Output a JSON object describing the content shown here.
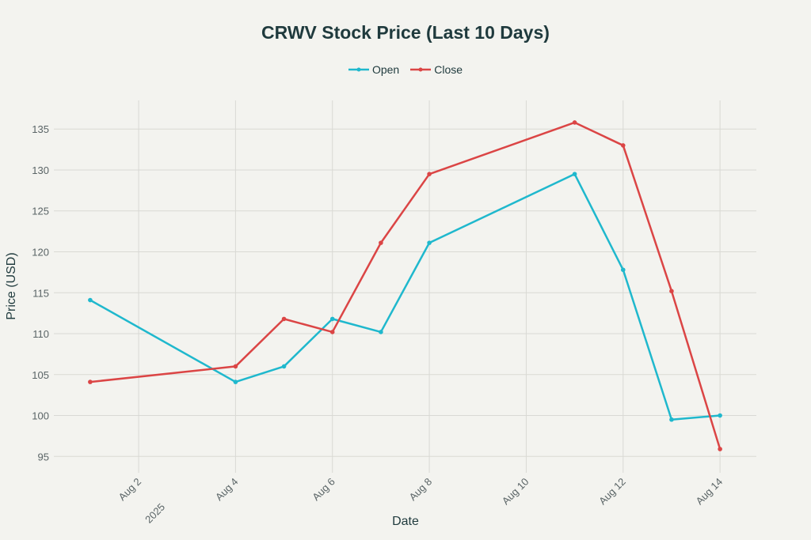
{
  "chart_data": {
    "type": "line",
    "title": "CRWV Stock Price (Last 10 Days)",
    "xlabel": "Date",
    "ylabel": "Price (USD)",
    "x": [
      "2025-08-01",
      "2025-08-04",
      "2025-08-05",
      "2025-08-06",
      "2025-08-07",
      "2025-08-08",
      "2025-08-11",
      "2025-08-12",
      "2025-08-13",
      "2025-08-14"
    ],
    "series": [
      {
        "name": "Open",
        "color": "#1fb8cd",
        "values": [
          114.1,
          104.1,
          106.0,
          111.8,
          110.2,
          121.1,
          129.5,
          117.8,
          99.5,
          100.0
        ]
      },
      {
        "name": "Close",
        "color": "#db4545",
        "values": [
          104.1,
          106.0,
          111.8,
          110.2,
          121.1,
          129.5,
          135.8,
          133.0,
          115.2,
          95.9
        ]
      }
    ],
    "x_ticks": [
      {
        "date": "2025-08-02",
        "label": "Aug 2",
        "sublabel": "2025"
      },
      {
        "date": "2025-08-04",
        "label": "Aug 4"
      },
      {
        "date": "2025-08-06",
        "label": "Aug 6"
      },
      {
        "date": "2025-08-08",
        "label": "Aug 8"
      },
      {
        "date": "2025-08-10",
        "label": "Aug 10"
      },
      {
        "date": "2025-08-12",
        "label": "Aug 12"
      },
      {
        "date": "2025-08-14",
        "label": "Aug 14"
      }
    ],
    "y_ticks": [
      95,
      100,
      105,
      110,
      115,
      120,
      125,
      130,
      135
    ],
    "ylim": [
      93,
      138.5
    ],
    "xlim": [
      "2025-07-31T06:00",
      "2025-08-14T18:00"
    ],
    "grid": true,
    "legend": "top-center"
  }
}
